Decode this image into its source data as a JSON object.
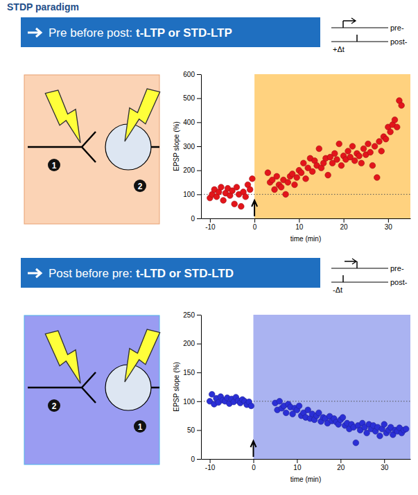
{
  "title": "STDP paradigm",
  "chart_data": [
    {
      "type": "scatter",
      "title": "Pre before post:",
      "subtitle": "t-LTP or STD-LTP",
      "annotations": [
        "pre-",
        "post-",
        "+Δt",
        "1",
        "2"
      ],
      "xlabel": "time (min)",
      "ylabel": "EPSP slope (%)",
      "color": "#e3151b",
      "marker": "circle",
      "xlim": [
        -12,
        35
      ],
      "xticks": [
        -10,
        0,
        10,
        20,
        30
      ],
      "ylim": [
        0,
        600
      ],
      "yticks": [
        0,
        100,
        200,
        300,
        400,
        500,
        600
      ],
      "baseline": 100,
      "induction": 0,
      "x": [
        -10,
        -9.5,
        -9,
        -8.5,
        -8,
        -7.5,
        -7,
        -6.5,
        -6,
        -5.5,
        -5,
        -4.5,
        -4,
        -3.5,
        -3,
        -2.5,
        -2,
        -1.5,
        -1,
        -0.5,
        3,
        3.5,
        4,
        4.5,
        5,
        5.5,
        6,
        6.5,
        7,
        7.5,
        8,
        8.5,
        9,
        9.5,
        10,
        10.5,
        11,
        11.5,
        12,
        12.5,
        13,
        13.5,
        14,
        14.5,
        15,
        15.5,
        16,
        16.5,
        17,
        17.5,
        18,
        18.5,
        19,
        19.5,
        20,
        20.5,
        21,
        21.5,
        22,
        22.5,
        23,
        23.5,
        24,
        24.5,
        25,
        25.5,
        26,
        26.5,
        27,
        27.5,
        28,
        28.5,
        29,
        29.5,
        30,
        30.5,
        31,
        31.5,
        32,
        32.5,
        33
      ],
      "values": [
        85,
        100,
        120,
        90,
        110,
        130,
        75,
        105,
        125,
        95,
        115,
        60,
        130,
        100,
        50,
        110,
        90,
        140,
        120,
        165,
        190,
        150,
        160,
        120,
        175,
        140,
        130,
        160,
        100,
        150,
        175,
        185,
        140,
        170,
        200,
        190,
        230,
        165,
        210,
        250,
        195,
        240,
        220,
        290,
        210,
        230,
        250,
        180,
        255,
        230,
        270,
        245,
        310,
        220,
        260,
        245,
        280,
        255,
        300,
        240,
        270,
        260,
        230,
        290,
        265,
        310,
        275,
        220,
        300,
        170,
        320,
        280,
        340,
        330,
        380,
        360,
        390,
        410,
        380,
        490,
        470
      ]
    },
    {
      "type": "scatter",
      "title": "Post before pre:",
      "subtitle": "t-LTD or STD-LTD",
      "annotations": [
        "pre-",
        "post-",
        "-Δt",
        "2",
        "1"
      ],
      "xlabel": "time (min)",
      "ylabel": "EPSP slope (%)",
      "color": "#2b2fd6",
      "marker": "circle",
      "xlim": [
        -12,
        36
      ],
      "xticks": [
        -10,
        0,
        10,
        20,
        30
      ],
      "ylim": [
        0,
        250
      ],
      "yticks": [
        0,
        50,
        100,
        150,
        200,
        250
      ],
      "baseline": 100,
      "induction": 0,
      "x": [
        -10,
        -9.5,
        -9,
        -8.5,
        -8,
        -7.5,
        -7,
        -6.5,
        -6,
        -5.5,
        -5,
        -4.5,
        -4,
        -3.5,
        -3,
        -2.5,
        -2,
        -1.5,
        -1,
        -0.5,
        5,
        5.5,
        6,
        6.5,
        7,
        7.5,
        8,
        8.5,
        9,
        9.5,
        10,
        10.5,
        11,
        11.5,
        12,
        12.5,
        13,
        13.5,
        14,
        14.5,
        15,
        15.5,
        16,
        16.5,
        17,
        17.5,
        18,
        18.5,
        19,
        19.5,
        20,
        20.5,
        21,
        21.5,
        22,
        22.5,
        23,
        23.5,
        24,
        24.5,
        25,
        25.5,
        26,
        26.5,
        27,
        27.5,
        28,
        28.5,
        29,
        29.5,
        30,
        30.5,
        31,
        31.5,
        32,
        32.5,
        33,
        33.5,
        34,
        34.5,
        35
      ],
      "values": [
        100,
        112,
        95,
        105,
        98,
        108,
        102,
        100,
        106,
        96,
        104,
        99,
        107,
        101,
        97,
        103,
        100,
        94,
        99,
        92,
        97,
        85,
        100,
        88,
        92,
        80,
        95,
        90,
        78,
        88,
        85,
        92,
        75,
        80,
        72,
        85,
        70,
        78,
        68,
        75,
        80,
        65,
        72,
        70,
        62,
        74,
        66,
        70,
        64,
        60,
        68,
        72,
        58,
        62,
        52,
        60,
        55,
        28,
        58,
        50,
        62,
        55,
        45,
        60,
        52,
        58,
        48,
        55,
        40,
        52,
        60,
        45,
        50,
        55,
        42,
        50,
        48,
        54,
        45,
        50,
        52
      ]
    }
  ]
}
